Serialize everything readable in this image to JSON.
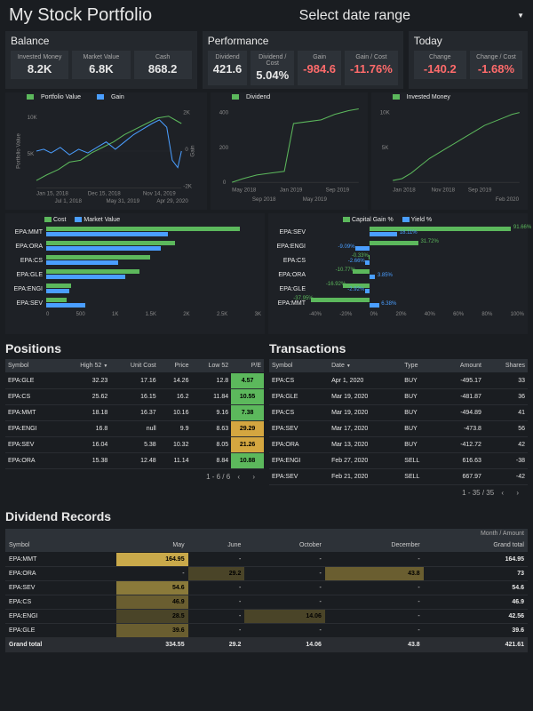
{
  "header": {
    "title": "My Stock Portfolio",
    "date_selector": "Select date range"
  },
  "balance": {
    "title": "Balance",
    "stats": [
      {
        "label": "Invested Money",
        "value": "8.2K"
      },
      {
        "label": "Market Value",
        "value": "6.8K"
      },
      {
        "label": "Cash",
        "value": "868.2"
      }
    ]
  },
  "performance": {
    "title": "Performance",
    "stats": [
      {
        "label": "Dividend",
        "value": "421.6"
      },
      {
        "label": "Dividend / Cost",
        "value": "5.04%"
      },
      {
        "label": "Gain",
        "value": "-984.6"
      },
      {
        "label": "Gain / Cost",
        "value": "-11.76%"
      }
    ]
  },
  "today": {
    "title": "Today",
    "stats": [
      {
        "label": "Change",
        "value": "-140.2"
      },
      {
        "label": "Change / Cost",
        "value": "-1.68%"
      }
    ]
  },
  "chart_main": {
    "legend": [
      "Portfolio Value",
      "Gain"
    ],
    "y_left_label": "Portfolio Value",
    "y_right_label": "Gain",
    "y_left_ticks": [
      "10K",
      "5K"
    ],
    "y_right_ticks": [
      "2K",
      "0",
      "-2K"
    ],
    "x_ticks": [
      "Jan 15, 2018",
      "Dec 15, 2018",
      "Nov 14, 2019",
      "Jul 1, 2018",
      "May 31, 2019",
      "Apr 29, 2020"
    ],
    "colors": {
      "portfolio": "#5cb85c",
      "gain": "#4a9eff"
    }
  },
  "chart_dividend": {
    "legend": [
      "Dividend"
    ],
    "y_ticks": [
      "400",
      "200",
      "0"
    ],
    "x_ticks": [
      "May 2018",
      "Jan 2019",
      "Sep 2019",
      "Sep 2018",
      "May 2019"
    ],
    "color": "#5cb85c"
  },
  "chart_invested": {
    "legend": [
      "Invested Money"
    ],
    "y_ticks": [
      "10K",
      "5K"
    ],
    "x_ticks": [
      "Jan 2018",
      "Nov 2018",
      "Sep 2019",
      "Feb 2020"
    ],
    "color": "#5cb85c"
  },
  "hbar_cost": {
    "legend": [
      "Cost",
      "Market Value"
    ],
    "colors": {
      "cost": "#5cb85c",
      "mv": "#4a9eff"
    },
    "rows": [
      {
        "label": "EPA:MMT",
        "cost": 2700,
        "mv": 1700
      },
      {
        "label": "EPA:ORA",
        "cost": 1800,
        "mv": 1600
      },
      {
        "label": "EPA:CS",
        "cost": 1450,
        "mv": 1000
      },
      {
        "label": "EPA:GLE",
        "cost": 1300,
        "mv": 1100
      },
      {
        "label": "EPA:ENGI",
        "cost": 350,
        "mv": 320
      },
      {
        "label": "EPA:SEV",
        "cost": 280,
        "mv": 540
      }
    ],
    "x_ticks": [
      "0",
      "500",
      "1K",
      "1.5K",
      "2K",
      "2.5K",
      "3K"
    ],
    "max": 3000
  },
  "hbar_pct": {
    "legend": [
      "Capital Gain %",
      "Yield %"
    ],
    "colors": {
      "gain": "#5cb85c",
      "yield": "#4a9eff"
    },
    "rows": [
      {
        "label": "EPA:SEV",
        "gain": 91.66,
        "yield": 18.11
      },
      {
        "label": "EPA:ENGI",
        "gain": 31.72,
        "yield": -9.09
      },
      {
        "label": "EPA:CS",
        "gain": -0.33,
        "yield": -2.66
      },
      {
        "label": "EPA:ORA",
        "gain": -10.77,
        "yield": 3.85
      },
      {
        "label": "EPA:GLE",
        "gain": -16.92,
        "yield": -2.92
      },
      {
        "label": "EPA:MMT",
        "gain": -37.95,
        "yield": 6.38
      }
    ],
    "x_ticks": [
      "-40%",
      "-20%",
      "0%",
      "20%",
      "40%",
      "60%",
      "80%",
      "100%"
    ]
  },
  "positions": {
    "title": "Positions",
    "columns": [
      "Symbol",
      "High 52",
      "Unit Cost",
      "Price",
      "Low 52",
      "P/E"
    ],
    "rows": [
      {
        "symbol": "EPA:GLE",
        "high52": "32.23",
        "unit_cost": "17.16",
        "price": "14.26",
        "low52": "12.8",
        "pe": "4.57",
        "pe_class": ""
      },
      {
        "symbol": "EPA:CS",
        "high52": "25.62",
        "unit_cost": "16.15",
        "price": "16.2",
        "low52": "11.84",
        "pe": "10.55",
        "pe_class": ""
      },
      {
        "symbol": "EPA:MMT",
        "high52": "18.18",
        "unit_cost": "16.37",
        "price": "10.16",
        "low52": "9.16",
        "pe": "7.38",
        "pe_class": ""
      },
      {
        "symbol": "EPA:ENGI",
        "high52": "16.8",
        "unit_cost": "null",
        "price": "9.9",
        "low52": "8.63",
        "pe": "29.29",
        "pe_class": "warn"
      },
      {
        "symbol": "EPA:SEV",
        "high52": "16.04",
        "unit_cost": "5.38",
        "price": "10.32",
        "low52": "8.05",
        "pe": "21.26",
        "pe_class": "warn"
      },
      {
        "symbol": "EPA:ORA",
        "high52": "15.38",
        "unit_cost": "12.48",
        "price": "11.14",
        "low52": "8.84",
        "pe": "10.88",
        "pe_class": ""
      }
    ],
    "pager": "1 - 6 / 6"
  },
  "transactions": {
    "title": "Transactions",
    "columns": [
      "Symbol",
      "Date",
      "Type",
      "Amount",
      "Shares"
    ],
    "rows": [
      {
        "symbol": "EPA:CS",
        "date": "Apr 1, 2020",
        "type": "BUY",
        "amount": "-495.17",
        "shares": "33"
      },
      {
        "symbol": "EPA:GLE",
        "date": "Mar 19, 2020",
        "type": "BUY",
        "amount": "-481.87",
        "shares": "36"
      },
      {
        "symbol": "EPA:CS",
        "date": "Mar 19, 2020",
        "type": "BUY",
        "amount": "-494.89",
        "shares": "41"
      },
      {
        "symbol": "EPA:SEV",
        "date": "Mar 17, 2020",
        "type": "BUY",
        "amount": "-473.8",
        "shares": "56"
      },
      {
        "symbol": "EPA:ORA",
        "date": "Mar 13, 2020",
        "type": "BUY",
        "amount": "-412.72",
        "shares": "42"
      },
      {
        "symbol": "EPA:ENGI",
        "date": "Feb 27, 2020",
        "type": "SELL",
        "amount": "616.63",
        "shares": "-38"
      },
      {
        "symbol": "EPA:SEV",
        "date": "Feb 21, 2020",
        "type": "SELL",
        "amount": "667.97",
        "shares": "-42"
      }
    ],
    "pager": "1 - 35 / 35"
  },
  "dividends": {
    "title": "Dividend Records",
    "hint": "Month / Amount",
    "columns": [
      "Symbol",
      "May",
      "June",
      "October",
      "December",
      "Grand total"
    ],
    "rows": [
      {
        "symbol": "EPA:MMT",
        "may": "164.95",
        "may_h": "h1",
        "jun": "-",
        "oct": "-",
        "dec": "-",
        "total": "164.95"
      },
      {
        "symbol": "EPA:ORA",
        "may": "-",
        "jun": "29.2",
        "jun_h": "h4",
        "oct": "-",
        "dec": "43.8",
        "dec_h": "h3",
        "total": "73"
      },
      {
        "symbol": "EPA:SEV",
        "may": "54.6",
        "may_h": "h2",
        "jun": "-",
        "oct": "-",
        "dec": "-",
        "total": "54.6"
      },
      {
        "symbol": "EPA:CS",
        "may": "46.9",
        "may_h": "h3",
        "jun": "-",
        "oct": "-",
        "dec": "-",
        "total": "46.9"
      },
      {
        "symbol": "EPA:ENGI",
        "may": "28.5",
        "may_h": "h4",
        "jun": "-",
        "oct": "14.06",
        "oct_h": "h4",
        "dec": "-",
        "total": "42.56"
      },
      {
        "symbol": "EPA:GLE",
        "may": "39.6",
        "may_h": "h3",
        "jun": "-",
        "oct": "-",
        "dec": "-",
        "total": "39.6"
      }
    ],
    "grand_total": {
      "label": "Grand total",
      "may": "334.55",
      "jun": "29.2",
      "oct": "14.06",
      "dec": "43.8",
      "total": "421.61"
    }
  }
}
